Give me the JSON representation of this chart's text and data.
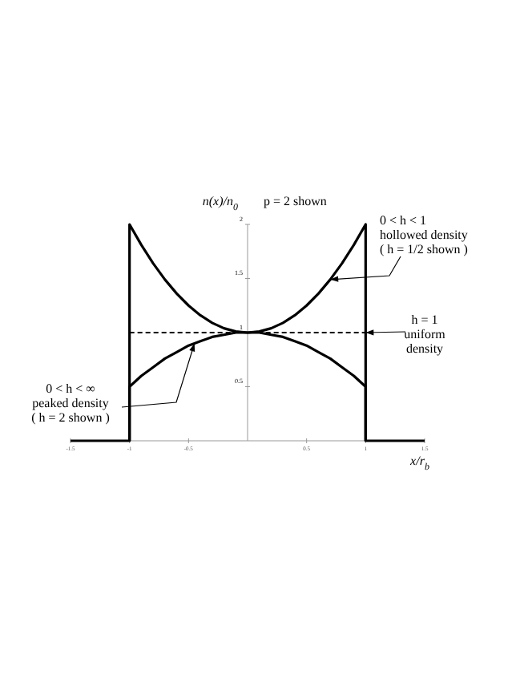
{
  "chart_data": {
    "type": "line",
    "title": "p = 2  shown",
    "xlabel": "x/r$_{b}$",
    "ylabel": "n(x)/n$_{0}$",
    "xlim": [
      -1.5,
      1.5
    ],
    "ylim": [
      0,
      2
    ],
    "xticks": [
      -1.5,
      -1,
      -0.5,
      0.5,
      1,
      1.5
    ],
    "yticks": [
      0.5,
      1,
      1.5,
      2
    ],
    "series": [
      {
        "color": "#000000",
        "line_style": "solid",
        "x": [
          -1.5,
          -1,
          -1,
          -0.9,
          -0.8,
          -0.7,
          -0.6,
          -0.5,
          -0.4,
          -0.3,
          -0.2,
          -0.1,
          0,
          0.1,
          0.2,
          0.3,
          0.4,
          0.5,
          0.6,
          0.7,
          0.8,
          0.9,
          1,
          1,
          1.5
        ],
        "values": [
          0,
          0,
          2,
          1.81,
          1.64,
          1.49,
          1.36,
          1.25,
          1.16,
          1.09,
          1.04,
          1.01,
          1,
          1.01,
          1.04,
          1.09,
          1.16,
          1.25,
          1.36,
          1.49,
          1.64,
          1.81,
          2,
          0,
          0
        ]
      },
      {
        "color": "#000000",
        "line_style": "solid",
        "x": [
          -1,
          -1,
          -0.9,
          -0.8,
          -0.7,
          -0.6,
          -0.5,
          -0.4,
          -0.3,
          -0.2,
          -0.1,
          0,
          0.1,
          0.2,
          0.3,
          0.4,
          0.5,
          0.6,
          0.7,
          0.8,
          0.9,
          1,
          1
        ],
        "values": [
          0,
          0.5,
          0.6,
          0.68,
          0.76,
          0.82,
          0.88,
          0.92,
          0.96,
          0.98,
          1,
          1,
          1,
          0.98,
          0.96,
          0.92,
          0.88,
          0.82,
          0.76,
          0.68,
          0.6,
          0.5,
          0
        ]
      },
      {
        "color": "#000000",
        "line_style": "dashed",
        "x": [
          -1,
          1
        ],
        "values": [
          1,
          1
        ]
      }
    ],
    "annotations": [
      {
        "text": "0 < h < 1\nhollowed density\n( h = 1/2  shown )",
        "x": 0.7,
        "y": 1.49
      },
      {
        "text": "h = 1\nuniform\ndensity",
        "x": 1,
        "y": 1
      },
      {
        "text": "0 < h < ∞\npeaked density\n( h = 2  shown )",
        "x": -0.45,
        "y": 0.9
      }
    ]
  }
}
